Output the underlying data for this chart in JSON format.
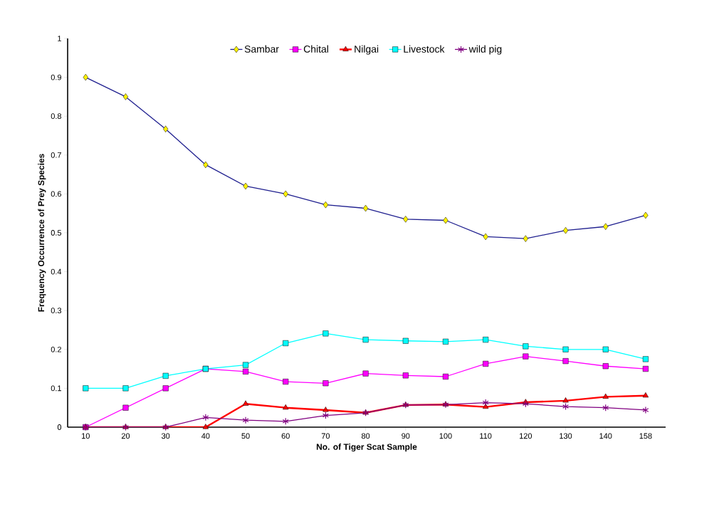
{
  "chart_data": {
    "type": "line",
    "xlabel": "No. of Tiger Scat Sample",
    "ylabel": "Frequency Occurrence of Prey Species",
    "categories": [
      "10",
      "20",
      "30",
      "40",
      "50",
      "60",
      "70",
      "80",
      "90",
      "100",
      "110",
      "120",
      "130",
      "140",
      "158"
    ],
    "series": [
      {
        "name": "Sambar",
        "color": "#1f1f8f",
        "marker": "diamond",
        "values": [
          0.9,
          0.85,
          0.767,
          0.675,
          0.62,
          0.6,
          0.572,
          0.563,
          0.535,
          0.532,
          0.49,
          0.485,
          0.506,
          0.516,
          0.545
        ]
      },
      {
        "name": "Chital",
        "color": "#ff00ff",
        "marker": "square",
        "values": [
          0,
          0.05,
          0.1,
          0.15,
          0.143,
          0.117,
          0.113,
          0.138,
          0.133,
          0.13,
          0.163,
          0.182,
          0.17,
          0.157,
          0.15
        ]
      },
      {
        "name": "Nilgai",
        "color": "#ff0000",
        "marker": "triangle",
        "values": [
          0,
          0,
          0,
          0,
          0.06,
          0.05,
          0.044,
          0.037,
          0.057,
          0.058,
          0.052,
          0.064,
          0.068,
          0.078,
          0.081
        ]
      },
      {
        "name": "Livestock",
        "color": "#00ffff",
        "marker": "square",
        "values": [
          0.1,
          0.1,
          0.132,
          0.15,
          0.16,
          0.216,
          0.241,
          0.225,
          0.222,
          0.22,
          0.225,
          0.208,
          0.2,
          0.2,
          0.175
        ]
      },
      {
        "name": "wild pig",
        "color": "#800080",
        "marker": "cross",
        "values": [
          0,
          0,
          0,
          0.025,
          0.018,
          0.015,
          0.03,
          0.037,
          0.057,
          0.058,
          0.063,
          0.06,
          0.053,
          0.05,
          0.044
        ]
      }
    ],
    "ylim": [
      0,
      1
    ],
    "yticks": [
      0,
      0.1,
      0.2,
      0.3,
      0.4,
      0.5,
      0.6,
      0.7,
      0.8,
      0.9,
      1
    ],
    "grid": false,
    "legend": "top"
  }
}
